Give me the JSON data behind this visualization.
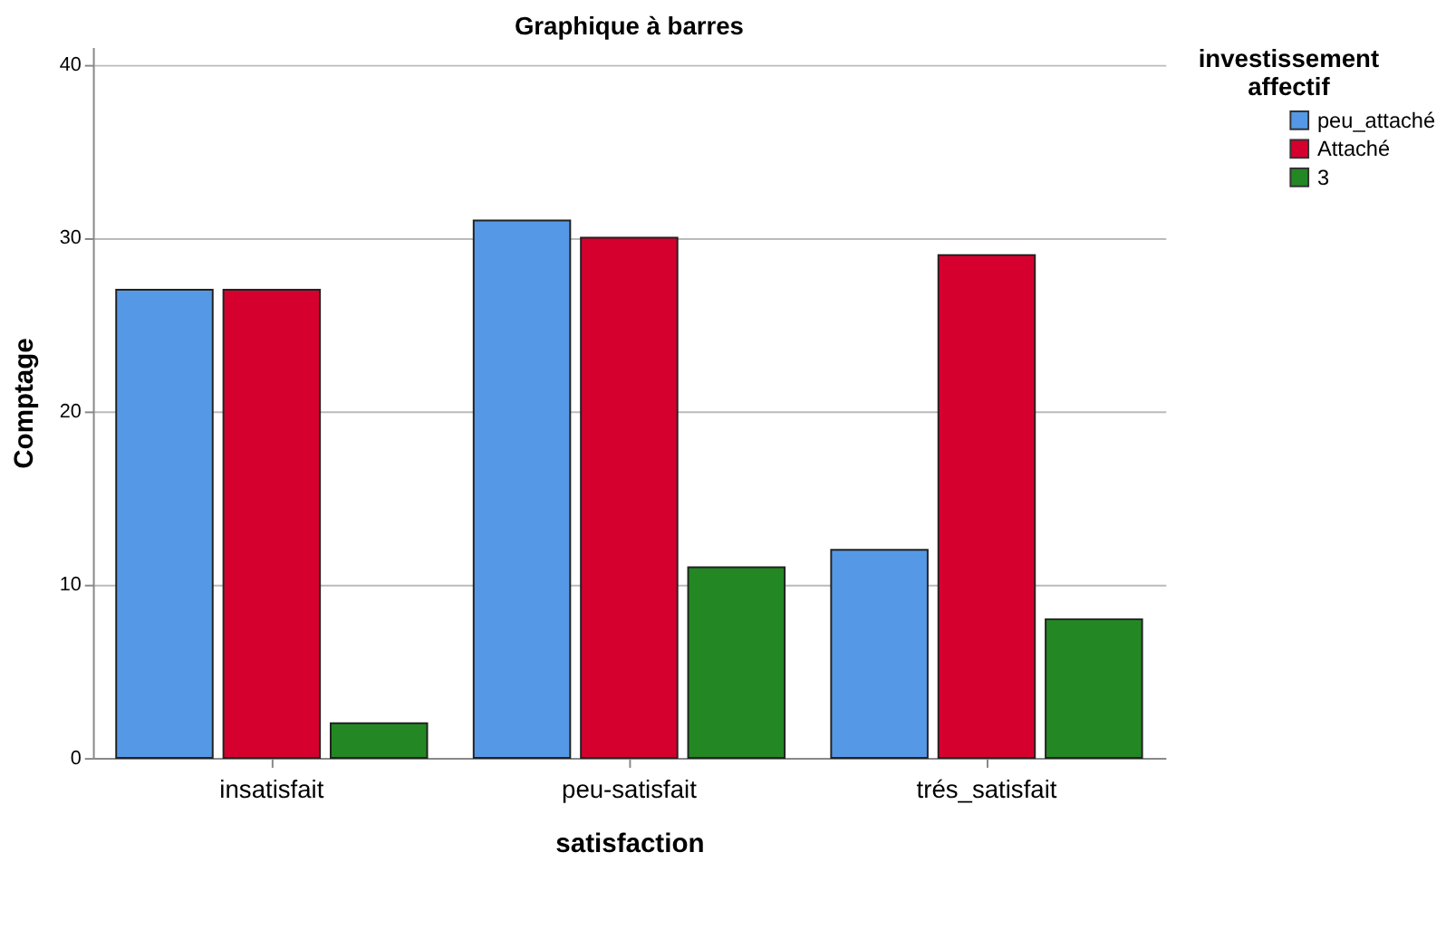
{
  "chart_data": {
    "type": "bar",
    "title": "Graphique à barres",
    "xlabel": "satisfaction",
    "ylabel": "Comptage",
    "legend_title": "investissement affectif",
    "categories": [
      "insatisfait",
      "peu-satisfait",
      "trés_satisfait"
    ],
    "series": [
      {
        "name": "peu_attaché",
        "color": "#5599e6",
        "values": [
          27,
          31,
          12
        ]
      },
      {
        "name": "Attaché",
        "color": "#d6002f",
        "values": [
          27,
          30,
          29
        ]
      },
      {
        "name": "3",
        "color": "#238823",
        "values": [
          2,
          11,
          8
        ]
      }
    ],
    "ylim": [
      0,
      41
    ],
    "yticks": [
      0,
      10,
      20,
      30,
      40
    ],
    "grid": "y",
    "legend": "top right"
  }
}
